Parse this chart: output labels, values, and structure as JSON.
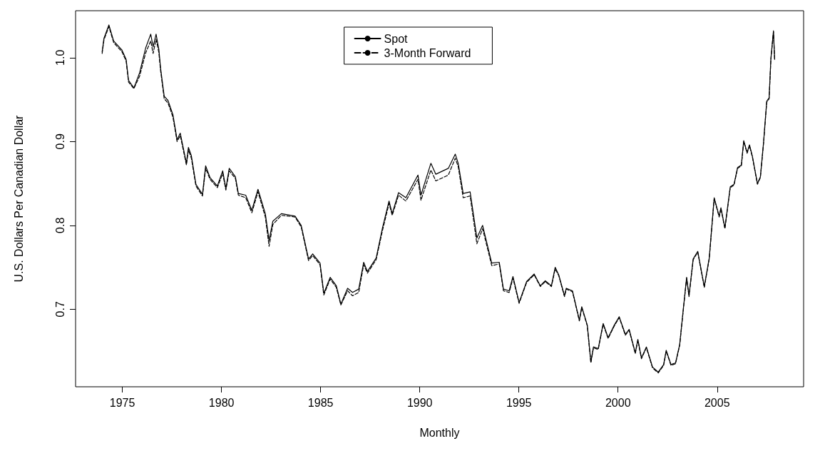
{
  "chart_data": {
    "type": "line",
    "xlabel": "Monthly",
    "ylabel": "U.S. Dollars Per Canadian Dollar",
    "x": [
      1973.98,
      1974.07,
      1974.32,
      1974.56,
      1974.75,
      1974.98,
      1975.19,
      1975.31,
      1975.58,
      1975.87,
      1976.18,
      1976.43,
      1976.55,
      1976.7,
      1976.84,
      1976.93,
      1977.11,
      1977.3,
      1977.55,
      1977.76,
      1977.92,
      1978.23,
      1978.33,
      1978.48,
      1978.71,
      1979.04,
      1979.2,
      1979.42,
      1979.79,
      1980.06,
      1980.22,
      1980.39,
      1980.7,
      1980.85,
      1981.22,
      1981.53,
      1981.84,
      1982.21,
      1982.4,
      1982.59,
      1983.02,
      1983.71,
      1984.02,
      1984.39,
      1984.6,
      1984.97,
      1985.16,
      1985.48,
      1985.79,
      1986.02,
      1986.36,
      1986.61,
      1986.92,
      1987.17,
      1987.36,
      1987.8,
      1988.11,
      1988.45,
      1988.61,
      1988.93,
      1989.3,
      1989.91,
      1990.06,
      1990.56,
      1990.81,
      1991.44,
      1991.79,
      1991.94,
      1992.19,
      1992.54,
      1992.88,
      1993.17,
      1993.63,
      1994.01,
      1994.22,
      1994.51,
      1994.7,
      1995.01,
      1995.39,
      1995.77,
      1996.08,
      1996.33,
      1996.64,
      1996.83,
      1997.01,
      1997.3,
      1997.39,
      1997.7,
      1998.05,
      1998.17,
      1998.45,
      1998.63,
      1998.76,
      1999,
      1999.25,
      1999.5,
      1999.81,
      2000.06,
      2000.37,
      2000.56,
      2000.87,
      2001,
      2001.18,
      2001.43,
      2001.74,
      2002.03,
      2002.3,
      2002.43,
      2002.67,
      2002.9,
      2003.11,
      2003.3,
      2003.46,
      2003.58,
      2003.79,
      2004.02,
      2004.35,
      2004.6,
      2004.85,
      2005.1,
      2005.19,
      2005.39,
      2005.66,
      2005.85,
      2006.03,
      2006.22,
      2006.34,
      2006.51,
      2006.63,
      2006.78,
      2007.03,
      2007.18,
      2007.34,
      2007.5,
      2007.62,
      2007.71,
      2007.84,
      2007.9
    ],
    "series": [
      {
        "name": "Spot",
        "color": "#000000",
        "line_style": "solid",
        "values": [
          1.007,
          1.023,
          1.039,
          1.02,
          1.015,
          1.009,
          0.998,
          0.973,
          0.964,
          0.982,
          1.012,
          1.028,
          1.013,
          1.028,
          1.01,
          0.987,
          0.954,
          0.949,
          0.932,
          0.902,
          0.91,
          0.874,
          0.893,
          0.883,
          0.849,
          0.837,
          0.871,
          0.857,
          0.847,
          0.865,
          0.844,
          0.868,
          0.858,
          0.838,
          0.836,
          0.818,
          0.843,
          0.814,
          0.782,
          0.805,
          0.814,
          0.811,
          0.8,
          0.76,
          0.766,
          0.755,
          0.719,
          0.738,
          0.728,
          0.706,
          0.725,
          0.72,
          0.724,
          0.756,
          0.745,
          0.761,
          0.796,
          0.829,
          0.814,
          0.839,
          0.833,
          0.86,
          0.836,
          0.874,
          0.861,
          0.868,
          0.885,
          0.874,
          0.838,
          0.84,
          0.785,
          0.8,
          0.755,
          0.756,
          0.724,
          0.722,
          0.739,
          0.708,
          0.733,
          0.742,
          0.728,
          0.734,
          0.728,
          0.75,
          0.741,
          0.716,
          0.725,
          0.722,
          0.687,
          0.703,
          0.681,
          0.637,
          0.655,
          0.653,
          0.683,
          0.666,
          0.681,
          0.691,
          0.67,
          0.676,
          0.648,
          0.664,
          0.642,
          0.655,
          0.631,
          0.625,
          0.634,
          0.651,
          0.634,
          0.636,
          0.658,
          0.702,
          0.738,
          0.716,
          0.76,
          0.769,
          0.727,
          0.761,
          0.833,
          0.811,
          0.821,
          0.797,
          0.846,
          0.849,
          0.869,
          0.872,
          0.901,
          0.887,
          0.896,
          0.882,
          0.85,
          0.858,
          0.899,
          0.948,
          0.952,
          0.999,
          1.032,
          0.998
        ]
      },
      {
        "name": "3-Month Forward",
        "color": "#000000",
        "line_style": "dashed",
        "values": [
          1.005,
          1.021,
          1.037,
          1.018,
          1.013,
          1.007,
          0.996,
          0.971,
          0.963,
          0.978,
          1.006,
          1.02,
          1.005,
          1.022,
          1.006,
          0.984,
          0.951,
          0.946,
          0.929,
          0.9,
          0.907,
          0.872,
          0.89,
          0.88,
          0.847,
          0.835,
          0.868,
          0.855,
          0.845,
          0.862,
          0.842,
          0.865,
          0.856,
          0.836,
          0.833,
          0.815,
          0.84,
          0.81,
          0.775,
          0.801,
          0.812,
          0.81,
          0.798,
          0.758,
          0.764,
          0.753,
          0.717,
          0.736,
          0.726,
          0.705,
          0.722,
          0.716,
          0.72,
          0.753,
          0.743,
          0.759,
          0.793,
          0.826,
          0.812,
          0.836,
          0.829,
          0.855,
          0.83,
          0.866,
          0.853,
          0.86,
          0.88,
          0.87,
          0.833,
          0.835,
          0.778,
          0.796,
          0.752,
          0.754,
          0.722,
          0.72,
          0.737,
          0.707,
          0.732,
          0.741,
          0.727,
          0.733,
          0.727,
          0.748,
          0.74,
          0.715,
          0.724,
          0.721,
          0.686,
          0.702,
          0.68,
          0.636,
          0.654,
          0.652,
          0.682,
          0.665,
          0.68,
          0.69,
          0.669,
          0.675,
          0.647,
          0.663,
          0.641,
          0.654,
          0.63,
          0.624,
          0.633,
          0.65,
          0.633,
          0.635,
          0.657,
          0.701,
          0.737,
          0.715,
          0.759,
          0.768,
          0.726,
          0.76,
          0.832,
          0.81,
          0.82,
          0.796,
          0.845,
          0.848,
          0.868,
          0.871,
          0.9,
          0.886,
          0.895,
          0.881,
          0.849,
          0.857,
          0.898,
          0.947,
          0.951,
          0.998,
          1.031,
          0.997
        ]
      }
    ],
    "xlim": [
      1972.64,
      2009.36
    ],
    "xticks": [
      1975,
      1980,
      1985,
      1990,
      1995,
      2000,
      2005
    ],
    "ylim": [
      0.6075,
      1.056
    ],
    "yticks": [
      0.7,
      0.8,
      0.9,
      {
        "value": 1,
        "label": "1.0"
      }
    ],
    "legend": "top",
    "marker": "none"
  }
}
